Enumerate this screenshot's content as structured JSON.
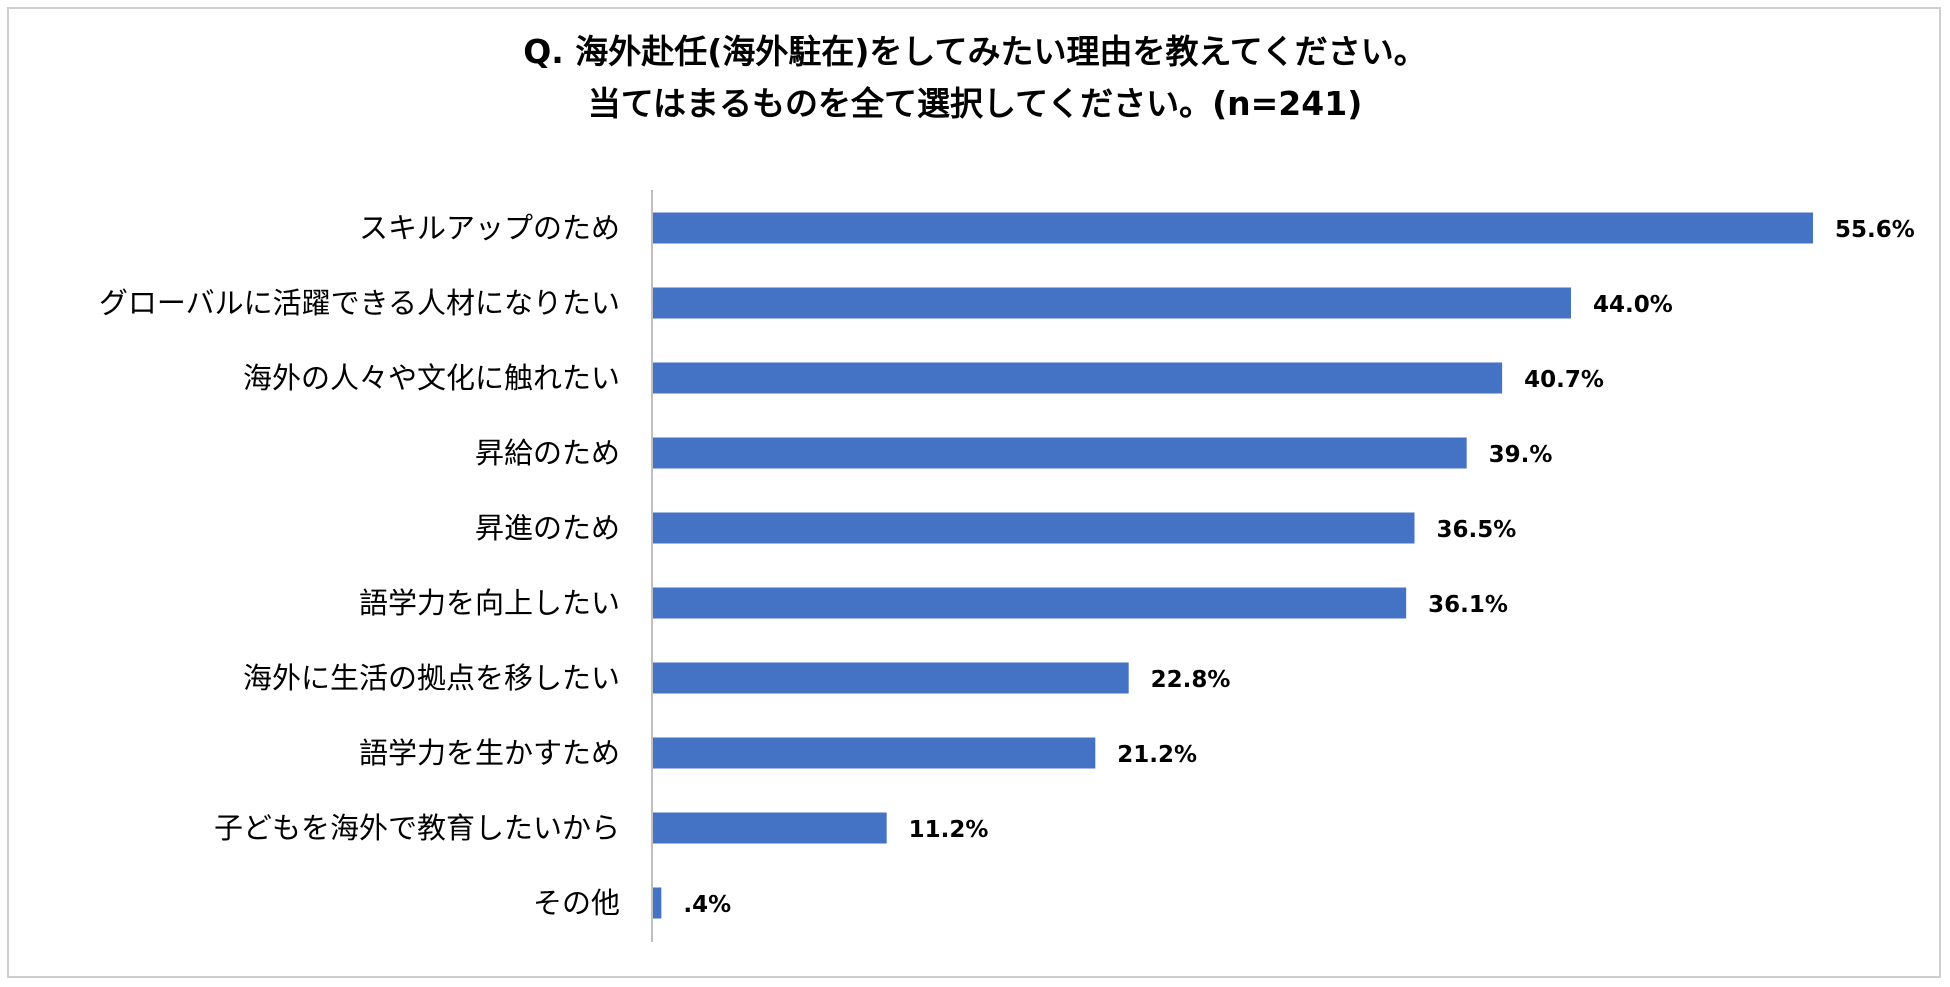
{
  "chart_data": {
    "type": "bar",
    "orientation": "horizontal",
    "title": "Q. 海外赴任(海外駐在)をしてみたい理由を教えてください。",
    "subtitle": "当てはまるものを全て選択してください。(n=241)",
    "categories": [
      "スキルアップのため",
      "グローバルに活躍できる人材になりたい",
      "海外の人々や文化に触れたい",
      "昇給のため",
      "昇進のため",
      "語学力を向上したい",
      "海外に生活の拠点を移したい",
      "語学力を生かすため",
      "子どもを海外で教育したいから",
      "その他"
    ],
    "values": [
      55.6,
      44.0,
      40.7,
      39.0,
      36.5,
      36.1,
      22.8,
      21.2,
      11.2,
      0.4
    ],
    "value_labels": [
      "55.6%",
      "44.0%",
      "40.7%",
      "39.%",
      "36.5%",
      "36.1%",
      "22.8%",
      "21.2%",
      "11.2%",
      ".4%"
    ],
    "unit": "%",
    "xlim": [
      0,
      60
    ],
    "grid": false,
    "legend": "none",
    "bar_color": "#4472C4",
    "axis_color": "#BFBFBF"
  }
}
